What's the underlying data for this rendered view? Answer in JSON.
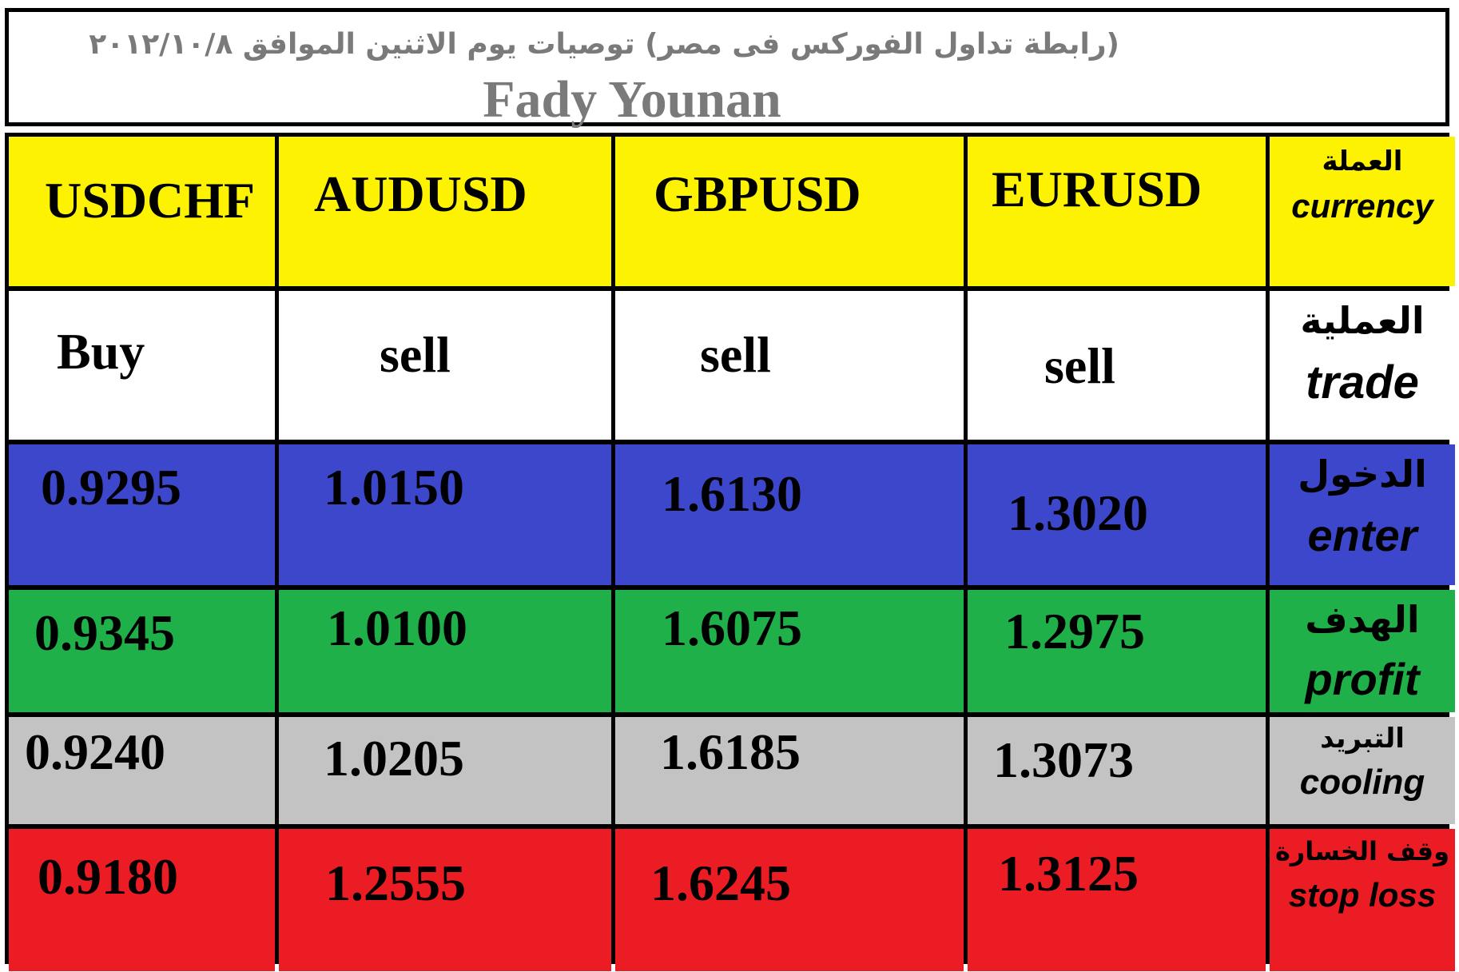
{
  "header": {
    "title_ar": "(رابطة تداول الفوركس فى مصر) توصيات يوم الاثنين الموافق ٢٠١٢/١٠/٨",
    "author": "Fady Younan"
  },
  "labels": {
    "currency": {
      "ar": "العملة",
      "en": "currency"
    },
    "trade": {
      "ar": "العملية",
      "en": "trade"
    },
    "enter": {
      "ar": "الدخول",
      "en": "enter"
    },
    "profit": {
      "ar": "الهدف",
      "en": "profit"
    },
    "cooling": {
      "ar": "التبريد",
      "en": "cooling"
    },
    "stop": {
      "ar": "وقف الخسارة",
      "en": "stop loss"
    }
  },
  "pairs": [
    {
      "currency": "USDCHF",
      "trade": "Buy",
      "enter": "0.9295",
      "profit": "0.9345",
      "cooling": "0.9240",
      "stop": "0.9180"
    },
    {
      "currency": "AUDUSD",
      "trade": "sell",
      "enter": "1.0150",
      "profit": "1.0100",
      "cooling": "1.0205",
      "stop": "1.2555"
    },
    {
      "currency": "GBPUSD",
      "trade": "sell",
      "enter": "1.6130",
      "profit": "1.6075",
      "cooling": "1.6185",
      "stop": "1.6245"
    },
    {
      "currency": "EURUSD",
      "trade": "sell",
      "enter": "1.3020",
      "profit": "1.2975",
      "cooling": "1.3073",
      "stop": "1.3125"
    }
  ],
  "colors": {
    "currency_row": "#fdf201",
    "trade_row": "#ffffff",
    "enter_row": "#3d47cc",
    "profit_row": "#20b04a",
    "cooling_row": "#c3c3c3",
    "stop_row": "#ec1c24",
    "header_text": "#7a7a7a"
  }
}
